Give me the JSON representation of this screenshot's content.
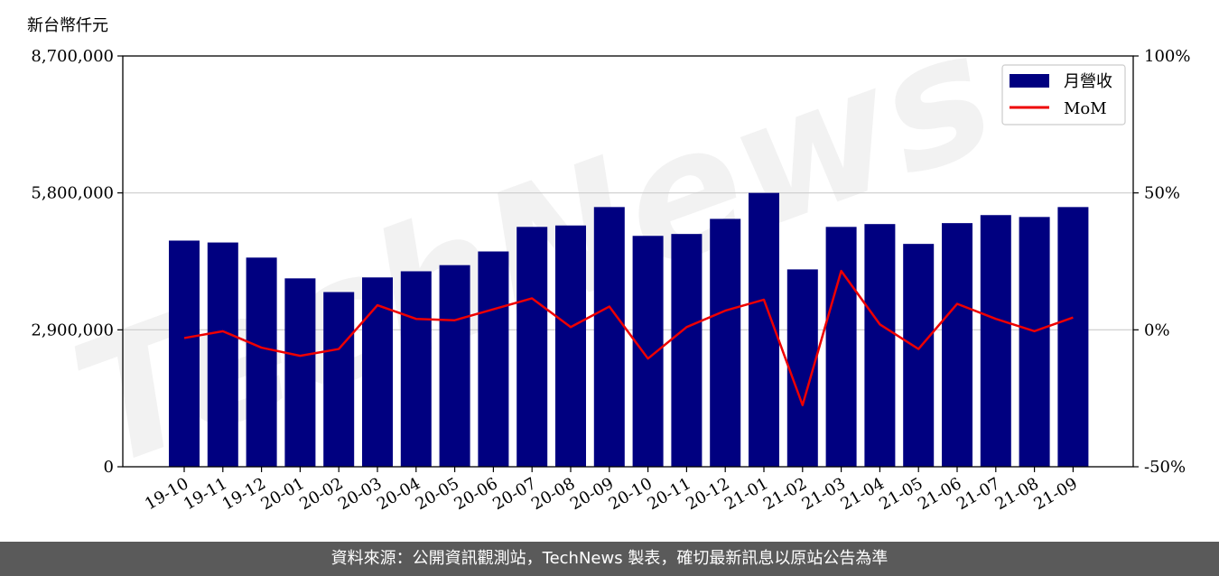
{
  "watermark": "TechNews",
  "footer_text": "資料來源：公開資訊觀測站，TechNews 製表，確切最新訊息以原站公告為準",
  "chart_data": {
    "type": "bar",
    "y_unit_label": "新台幣仟元",
    "categories": [
      "19-10",
      "19-11",
      "19-12",
      "20-01",
      "20-02",
      "20-03",
      "20-04",
      "20-05",
      "20-06",
      "20-07",
      "20-08",
      "20-09",
      "20-10",
      "20-11",
      "20-12",
      "21-01",
      "21-02",
      "21-03",
      "21-04",
      "21-05",
      "21-06",
      "21-07",
      "21-08",
      "21-09"
    ],
    "series": [
      {
        "name": "月營收",
        "type": "bar",
        "axis": "left",
        "color": "#000080",
        "values": [
          4790000,
          4750000,
          4430000,
          3990000,
          3700000,
          4010000,
          4140000,
          4270000,
          4560000,
          5080000,
          5110000,
          5500000,
          4890000,
          4930000,
          5250000,
          5800000,
          4180000,
          5080000,
          5140000,
          4720000,
          5160000,
          5330000,
          5290000,
          5500000
        ]
      },
      {
        "name": "MoM",
        "type": "line",
        "axis": "right",
        "color": "#ee0000",
        "values": [
          -3,
          -0.5,
          -6.5,
          -9.5,
          -7,
          9,
          4,
          3.5,
          7.5,
          11.5,
          1,
          8.5,
          -10.5,
          1,
          7,
          11,
          -27.5,
          21.5,
          2,
          -7,
          9.5,
          4,
          -0.5,
          4.5
        ]
      }
    ],
    "y_left": {
      "ylim": [
        0,
        8700000
      ],
      "ticks": [
        0,
        2900000,
        5800000,
        8700000
      ],
      "tick_labels": [
        "0",
        "2,900,000",
        "5,800,000",
        "8,700,000"
      ]
    },
    "y_right": {
      "ylim": [
        -50,
        100
      ],
      "ticks": [
        -50,
        0,
        50,
        100
      ],
      "tick_labels": [
        "-50%",
        "0%",
        "50%",
        "100%"
      ]
    },
    "grid": "horizontal",
    "legend": {
      "placement": "top-right",
      "entries": [
        "月營收",
        "MoM"
      ]
    }
  }
}
